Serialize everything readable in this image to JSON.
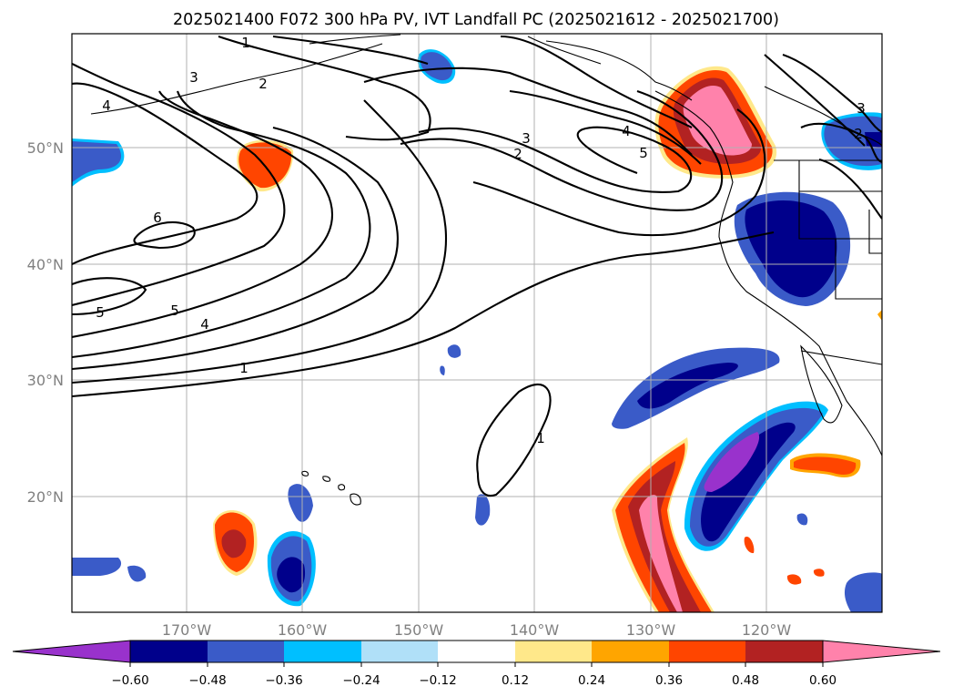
{
  "title": "2025021400 F072 300 hPa PV, IVT Landfall PC (2025021612 - 2025021700)",
  "map": {
    "lon_ticks": [
      "170°W",
      "160°W",
      "150°W",
      "140°W",
      "130°W",
      "120°W"
    ],
    "lat_ticks": [
      "50°N",
      "40°N",
      "30°N",
      "20°N"
    ],
    "contour_labels": [
      "1",
      "3",
      "2",
      "4",
      "3",
      "2",
      "4",
      "5",
      "6",
      "5",
      "5",
      "4",
      "1",
      "1",
      "3",
      "2"
    ]
  },
  "colorbar": {
    "ticks": [
      "−0.60",
      "−0.48",
      "−0.36",
      "−0.24",
      "−0.12",
      "0.12",
      "0.24",
      "0.36",
      "0.48",
      "0.60"
    ],
    "colors": [
      "#9932cc",
      "#00008b",
      "#3a5bc8",
      "#00bfff",
      "#b0e0f8",
      "#ffffff",
      "#ffe88a",
      "#ffa500",
      "#ff4500",
      "#b22222",
      "#ff82ab"
    ]
  }
}
